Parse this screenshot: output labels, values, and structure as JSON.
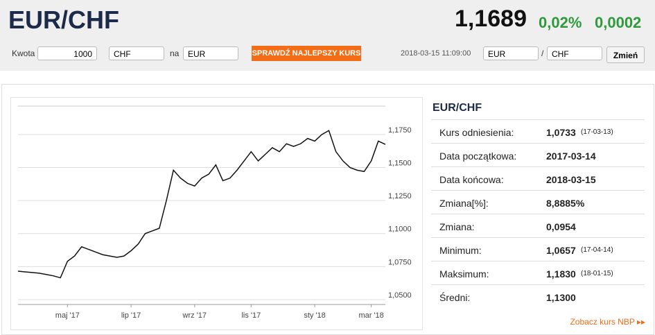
{
  "header": {
    "title": "EUR/CHF",
    "price": "1,1689",
    "change_pct": "0,02%",
    "change": "0,0002"
  },
  "toolbar": {
    "amount_label": "Kwota",
    "amount": "1000",
    "from": "CHF",
    "to_label": "na",
    "to": "EUR",
    "button": "SPRAWDŹ NAJLEPSZY KURS",
    "timestamp": "2018-03-15 11:09:00",
    "pair_from": "EUR",
    "separator": "/",
    "pair_to": "CHF",
    "switch": "Zmień"
  },
  "chart_data": {
    "type": "line",
    "categories": [
      null,
      null,
      null,
      null,
      null,
      null,
      null,
      "maj '17",
      null,
      null,
      null,
      null,
      null,
      null,
      null,
      null,
      "lip '17",
      null,
      null,
      null,
      null,
      null,
      null,
      null,
      null,
      "wrz '17",
      null,
      null,
      null,
      null,
      null,
      null,
      null,
      "lis '17",
      null,
      null,
      null,
      null,
      null,
      null,
      null,
      null,
      "sty '18",
      null,
      null,
      null,
      null,
      null,
      null,
      null,
      "mar '18",
      null,
      null
    ],
    "series": [
      {
        "color": "#111111",
        "values": [
          1.0715,
          1.071,
          1.0705,
          1.07,
          1.069,
          1.068,
          1.0665,
          1.079,
          1.083,
          1.09,
          1.088,
          1.086,
          1.084,
          1.083,
          1.082,
          1.083,
          1.087,
          1.092,
          1.1,
          1.102,
          1.104,
          1.125,
          1.148,
          1.142,
          1.138,
          1.136,
          1.142,
          1.145,
          1.152,
          1.14,
          1.142,
          1.148,
          1.155,
          1.162,
          1.155,
          1.16,
          1.165,
          1.162,
          1.168,
          1.166,
          1.168,
          1.172,
          1.17,
          1.175,
          1.178,
          1.162,
          1.155,
          1.15,
          1.148,
          1.147,
          1.155,
          1.17,
          1.1675
        ]
      }
    ],
    "ylim": [
      1.0463,
      1.1965
    ],
    "yticks": [
      {
        "value": 1.05,
        "label": "1,0500"
      },
      {
        "value": 1.075,
        "label": "1,0750"
      },
      {
        "value": 1.1,
        "label": "1,1000"
      },
      {
        "value": 1.125,
        "label": "1,1250"
      },
      {
        "value": 1.15,
        "label": "1,1500"
      },
      {
        "value": 1.175,
        "label": "1,1750"
      }
    ],
    "grid": true
  },
  "stats": {
    "title": "EUR/CHF",
    "rows": [
      [
        "Kurs odniesienia:",
        "1,0733",
        "(17-03-13)"
      ],
      [
        "Data początkowa:",
        "2017-03-14",
        null
      ],
      [
        "Data końcowa:",
        "2018-03-15",
        null
      ],
      [
        "Zmiana[%]:",
        "8,8885%",
        null
      ],
      [
        "Zmiana:",
        "0,0954",
        null
      ],
      [
        "Minimum:",
        "1,0657",
        "(17-04-14)"
      ],
      [
        "Maksimum:",
        "1,1830",
        "(18-01-15)"
      ],
      [
        "Średni:",
        "1,1300",
        null
      ]
    ],
    "link": "Zobacz kurs NBP ▸▸"
  }
}
